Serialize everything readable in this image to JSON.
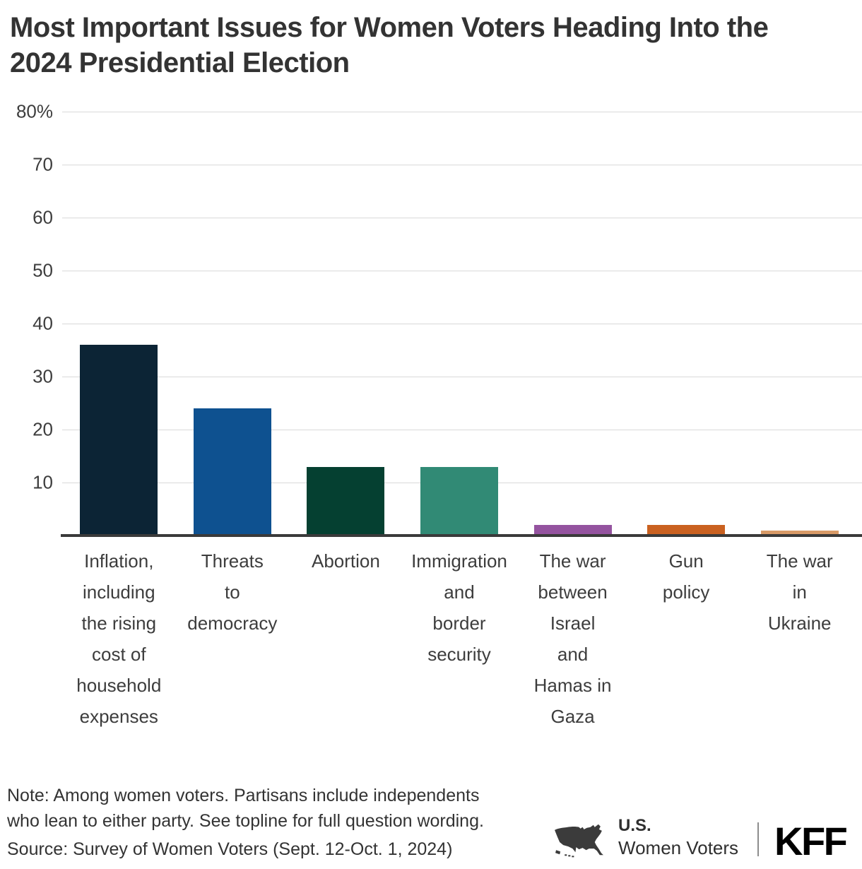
{
  "title_lines": [
    "Most Important Issues for Women Voters Heading Into the",
    "2024 Presidential Election"
  ],
  "chart_data": {
    "type": "bar",
    "title": "Most Important Issues for Women Voters Heading Into the 2024 Presidential Election",
    "categories": [
      "Inflation, including the rising cost of household expenses",
      "Threats to democracy",
      "Abortion",
      "Immigration and border security",
      "The war between Israel and Hamas in Gaza",
      "Gun policy",
      "The war in Ukraine"
    ],
    "values": [
      36,
      24,
      13,
      13,
      2,
      2,
      1
    ],
    "unit": "percent",
    "bar_colors": [
      "#0c2435",
      "#0e5190",
      "#054031",
      "#318a75",
      "#94539f",
      "#ca6120",
      "#d89a67"
    ],
    "ylim": [
      0,
      80
    ],
    "yticks": [
      {
        "value": 80,
        "label": "80%"
      },
      {
        "value": 70,
        "label": "70"
      },
      {
        "value": 60,
        "label": "60"
      },
      {
        "value": 50,
        "label": "50"
      },
      {
        "value": 40,
        "label": "40"
      },
      {
        "value": 30,
        "label": "30"
      },
      {
        "value": 20,
        "label": "20"
      },
      {
        "value": 10,
        "label": "10"
      }
    ],
    "grid": "horizontal",
    "legend": "none",
    "label_lines": [
      [
        "Inflation,",
        "including",
        "the rising",
        "cost of",
        "household",
        "expenses"
      ],
      [
        "Threats",
        "to",
        "democracy"
      ],
      [
        "Abortion"
      ],
      [
        "Immigration",
        "and",
        "border",
        "security"
      ],
      [
        "The war",
        "between",
        "Israel",
        "and",
        "Hamas in",
        "Gaza"
      ],
      [
        "Gun",
        "policy"
      ],
      [
        "The war",
        "in",
        "Ukraine"
      ]
    ]
  },
  "note_lines": [
    "Note: Among women voters. Partisans include independents",
    "who lean to either party. See topline for full question wording."
  ],
  "source": "Source: Survey of Women Voters (Sept. 12-Oct. 1, 2024)",
  "branding": {
    "region_label": "U.S.",
    "audience_label": "Women Voters",
    "logo": "KFF",
    "map_icon": "us-map-icon"
  },
  "colors": {
    "title": "#333333",
    "text": "#3d3d3d",
    "axis": "#3a3a3a",
    "gridline": "#d9d9d9",
    "brand": "#2f2f2f",
    "logo": "#000000"
  }
}
